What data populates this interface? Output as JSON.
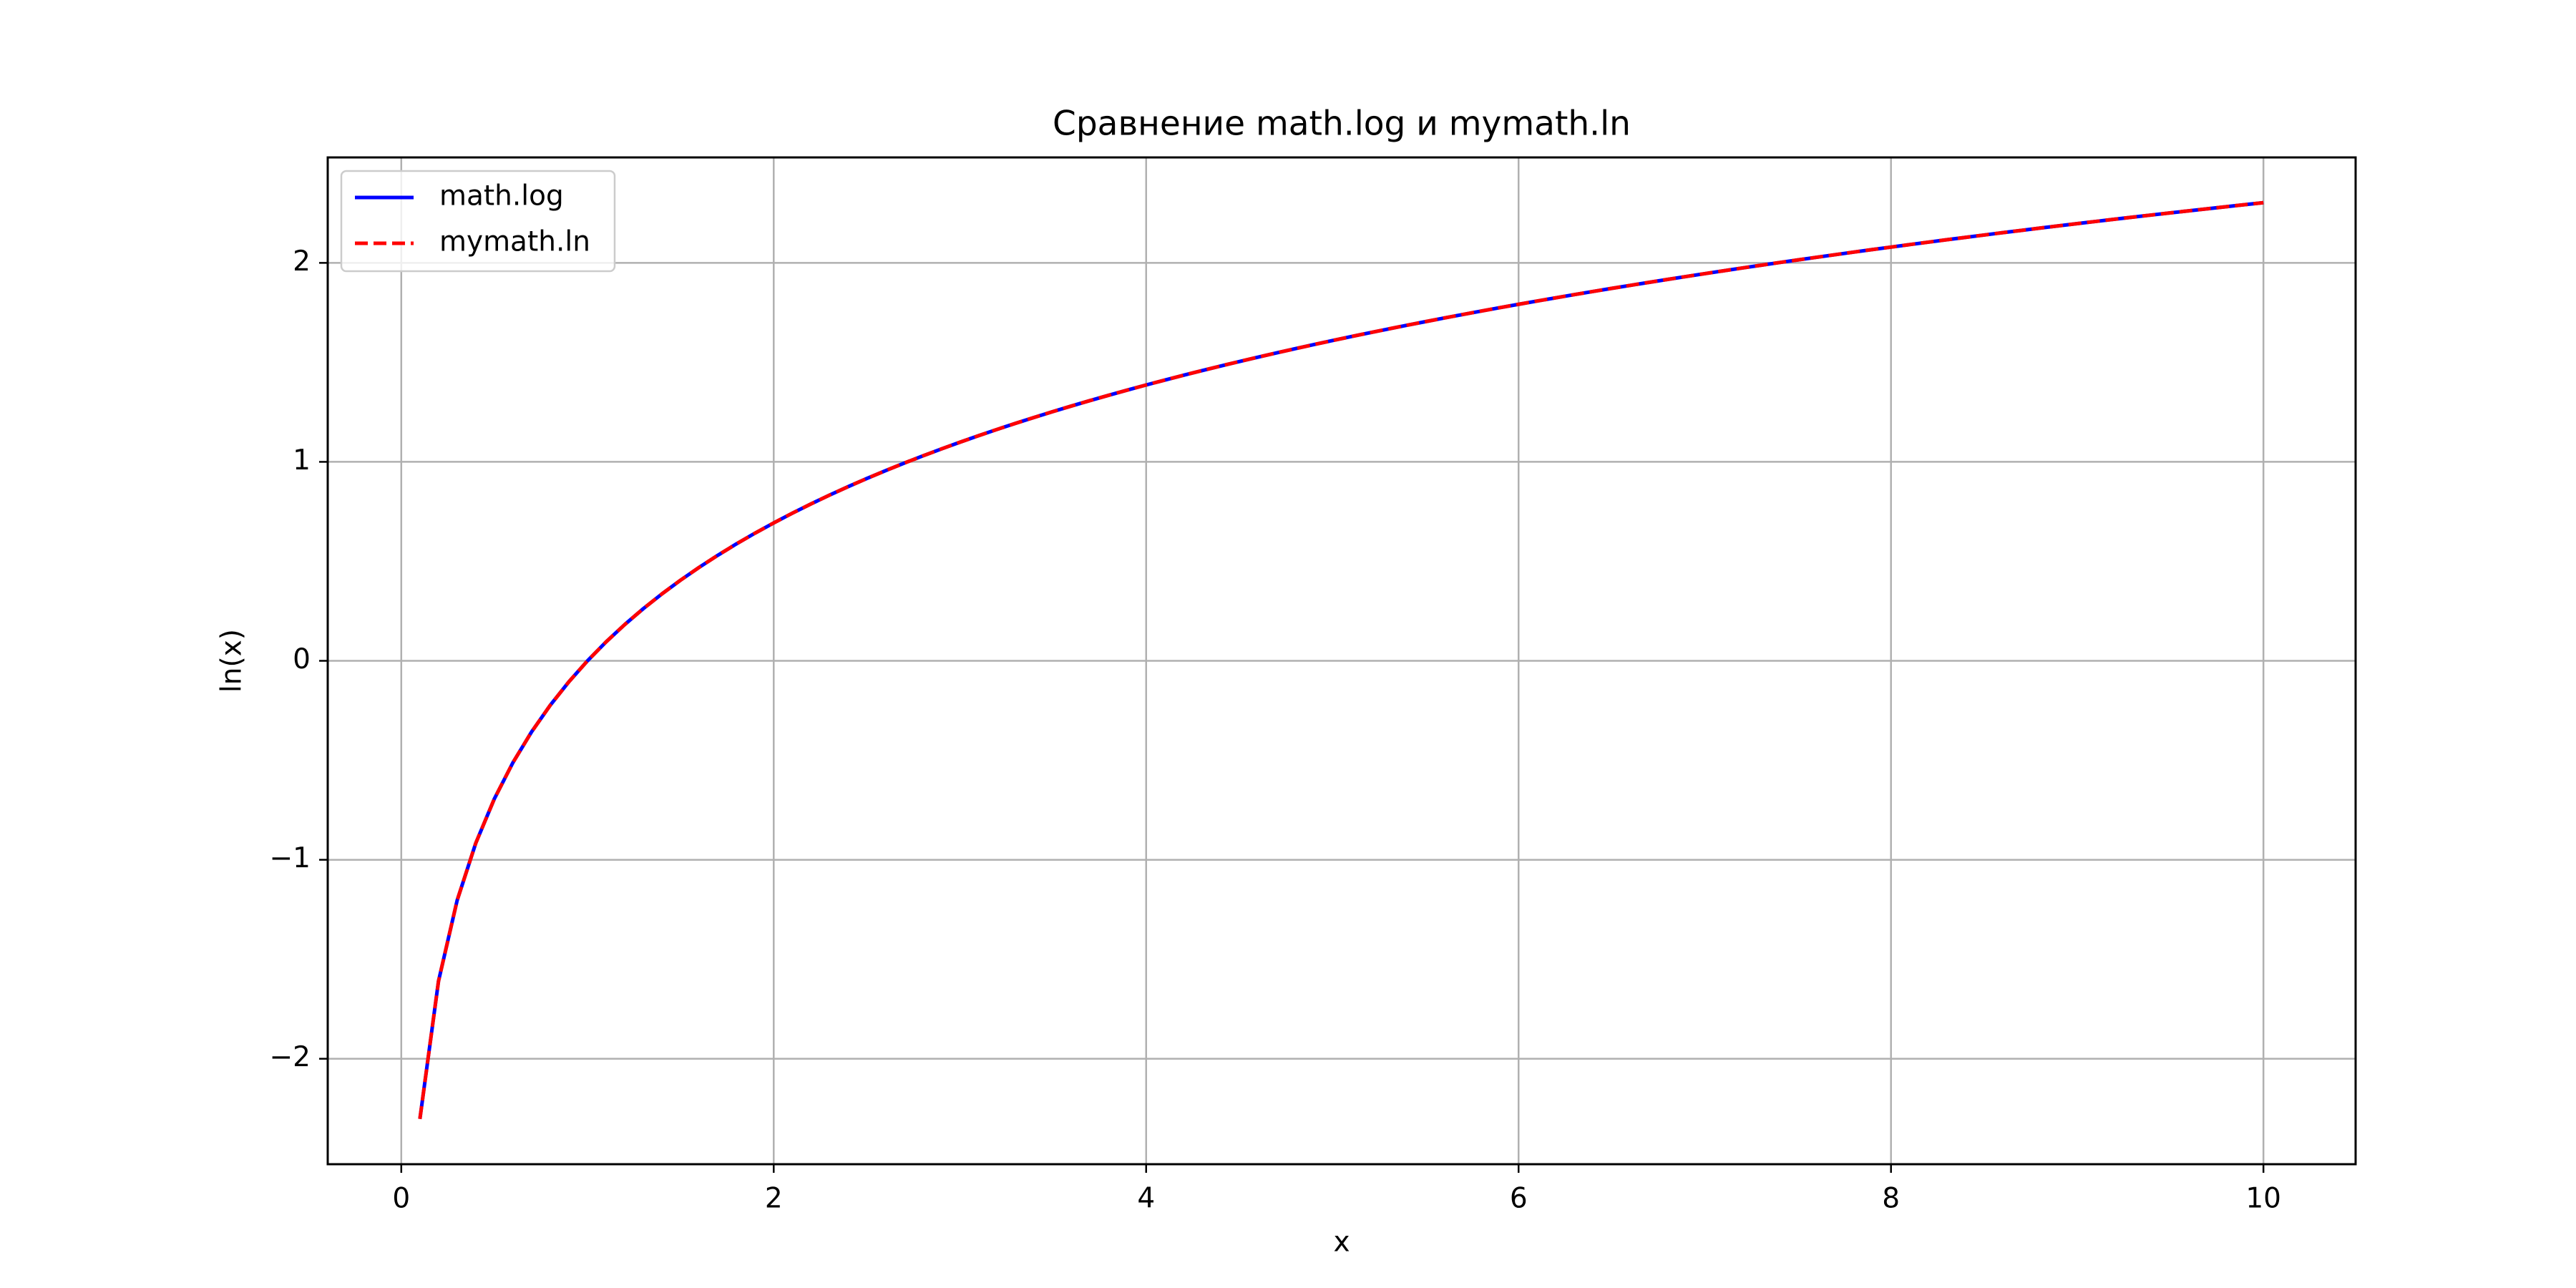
{
  "chart_data": {
    "type": "line",
    "title": "Сравнение math.log и mymath.ln",
    "xlabel": "x",
    "ylabel": "ln(x)",
    "xlim": [
      -0.395,
      10.495
    ],
    "ylim": [
      -2.53,
      2.53
    ],
    "xticks": [
      0,
      2,
      4,
      6,
      8,
      10
    ],
    "yticks": [
      -2,
      -1,
      0,
      1,
      2
    ],
    "xtick_labels": [
      "0",
      "2",
      "4",
      "6",
      "8",
      "10"
    ],
    "ytick_labels": [
      "−2",
      "−1",
      "0",
      "1",
      "2"
    ],
    "grid": true,
    "legend_position": "upper left",
    "x": [
      0.1,
      0.2,
      0.3,
      0.4,
      0.5,
      0.6,
      0.7,
      0.8,
      0.9,
      1.0,
      1.1,
      1.2,
      1.3,
      1.4,
      1.5,
      1.6,
      1.7,
      1.8,
      1.9,
      2.0,
      2.1,
      2.2,
      2.3,
      2.4,
      2.5,
      2.6,
      2.7,
      2.8,
      2.9,
      3.0,
      3.1,
      3.2,
      3.3,
      3.4,
      3.5,
      3.6,
      3.7,
      3.8,
      3.9,
      4.0,
      4.1,
      4.2,
      4.3,
      4.4,
      4.5,
      4.6,
      4.7,
      4.8,
      4.9,
      5.0,
      5.1,
      5.2,
      5.3,
      5.4,
      5.5,
      5.6,
      5.7,
      5.8,
      5.9,
      6.0,
      6.1,
      6.2,
      6.3,
      6.4,
      6.5,
      6.6,
      6.7,
      6.8,
      6.9,
      7.0,
      7.1,
      7.2,
      7.3,
      7.4,
      7.5,
      7.6,
      7.7,
      7.8,
      7.9,
      8.0,
      8.1,
      8.2,
      8.3,
      8.4,
      8.5,
      8.6,
      8.7,
      8.8,
      8.9,
      9.0,
      9.1,
      9.2,
      9.3,
      9.4,
      9.5,
      9.6,
      9.7,
      9.8,
      9.9,
      10.0
    ],
    "series": [
      {
        "name": "math.log",
        "color": "#0000ff",
        "style": "solid",
        "values": [
          -2.3026,
          -1.6094,
          -1.204,
          -0.9163,
          -0.6931,
          -0.5108,
          -0.3567,
          -0.2231,
          -0.1054,
          0.0,
          0.0953,
          0.1823,
          0.2624,
          0.3365,
          0.4055,
          0.47,
          0.5306,
          0.5878,
          0.6419,
          0.6931,
          0.7419,
          0.7885,
          0.8329,
          0.8755,
          0.9163,
          0.9555,
          0.9933,
          1.0296,
          1.0647,
          1.0986,
          1.1314,
          1.1632,
          1.1939,
          1.2238,
          1.2528,
          1.2809,
          1.3083,
          1.335,
          1.361,
          1.3863,
          1.411,
          1.4351,
          1.4586,
          1.4816,
          1.5041,
          1.5261,
          1.5476,
          1.5686,
          1.5892,
          1.6094,
          1.6292,
          1.6487,
          1.6677,
          1.6864,
          1.7047,
          1.7228,
          1.7405,
          1.7579,
          1.775,
          1.7918,
          1.8083,
          1.8245,
          1.8405,
          1.8563,
          1.8718,
          1.887,
          1.9021,
          1.9169,
          1.9315,
          1.9459,
          1.9601,
          1.9741,
          1.9879,
          2.0015,
          2.0149,
          2.0281,
          2.0412,
          2.0541,
          2.0669,
          2.0794,
          2.0919,
          2.1041,
          2.1163,
          2.1282,
          2.1401,
          2.1518,
          2.1633,
          2.1748,
          2.1861,
          2.1972,
          2.2083,
          2.2192,
          2.23,
          2.2407,
          2.2513,
          2.2618,
          2.2721,
          2.2824,
          2.2925,
          2.3026
        ]
      },
      {
        "name": "mymath.ln",
        "color": "#ff0000",
        "style": "dashed",
        "values": [
          -2.3026,
          -1.6094,
          -1.204,
          -0.9163,
          -0.6931,
          -0.5108,
          -0.3567,
          -0.2231,
          -0.1054,
          0.0,
          0.0953,
          0.1823,
          0.2624,
          0.3365,
          0.4055,
          0.47,
          0.5306,
          0.5878,
          0.6419,
          0.6931,
          0.7419,
          0.7885,
          0.8329,
          0.8755,
          0.9163,
          0.9555,
          0.9933,
          1.0296,
          1.0647,
          1.0986,
          1.1314,
          1.1632,
          1.1939,
          1.2238,
          1.2528,
          1.2809,
          1.3083,
          1.335,
          1.361,
          1.3863,
          1.411,
          1.4351,
          1.4586,
          1.4816,
          1.5041,
          1.5261,
          1.5476,
          1.5686,
          1.5892,
          1.6094,
          1.6292,
          1.6487,
          1.6677,
          1.6864,
          1.7047,
          1.7228,
          1.7405,
          1.7579,
          1.775,
          1.7918,
          1.8083,
          1.8245,
          1.8405,
          1.8563,
          1.8718,
          1.887,
          1.9021,
          1.9169,
          1.9315,
          1.9459,
          1.9601,
          1.9741,
          1.9879,
          2.0015,
          2.0149,
          2.0281,
          2.0412,
          2.0541,
          2.0669,
          2.0794,
          2.0919,
          2.1041,
          2.1163,
          2.1282,
          2.1401,
          2.1518,
          2.1633,
          2.1748,
          2.1861,
          2.1972,
          2.2083,
          2.2192,
          2.23,
          2.2407,
          2.2513,
          2.2618,
          2.2721,
          2.2824,
          2.2925,
          2.3026
        ]
      }
    ]
  }
}
